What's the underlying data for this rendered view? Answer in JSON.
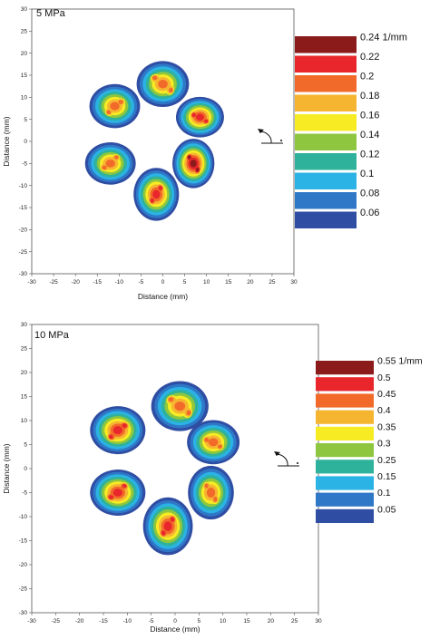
{
  "chart_data": [
    {
      "type": "heatmap",
      "title": "5 MPa",
      "xlabel": "Distance (mm)",
      "ylabel": "Distance (mm)",
      "xlim": [
        -30,
        30
      ],
      "ylim": [
        -30,
        30
      ],
      "xticks": [
        -30,
        -25,
        -20,
        -15,
        -10,
        -5,
        0,
        5,
        10,
        15,
        20,
        25,
        30
      ],
      "yticks": [
        -30,
        -25,
        -20,
        -15,
        -10,
        -5,
        0,
        5,
        10,
        15,
        20,
        25,
        30
      ],
      "grid": false,
      "colorbar": {
        "unit": "1/mm",
        "levels": [
          0.24,
          0.22,
          0.2,
          0.18,
          0.16,
          0.14,
          0.12,
          0.1,
          0.08,
          0.06
        ],
        "labels": [
          "0.24 1/mm",
          "0.22",
          "0.2",
          "0.18",
          "0.16",
          "0.14",
          "0.12",
          "0.1",
          "0.08",
          "0.06"
        ],
        "colors": [
          "#8b1a1a",
          "#e8262b",
          "#f26a2a",
          "#f6b531",
          "#f7ec24",
          "#8ec63f",
          "#2fb29b",
          "#2bb3e5",
          "#2f78c8",
          "#2f4ea3"
        ]
      },
      "blobs": [
        {
          "x": 0,
          "y": 13,
          "peak": 0.2
        },
        {
          "x": -11,
          "y": 8,
          "peak": 0.2
        },
        {
          "x": 8.5,
          "y": 5.5,
          "peak": 0.22
        },
        {
          "x": -12,
          "y": -5,
          "peak": 0.2
        },
        {
          "x": 7,
          "y": -5,
          "peak": 0.24
        },
        {
          "x": -1.5,
          "y": -12,
          "peak": 0.22
        }
      ]
    },
    {
      "type": "heatmap",
      "title": "10 MPa",
      "xlabel": "Distance (mm)",
      "ylabel": "Distance (mm)",
      "xlim": [
        -30,
        30
      ],
      "ylim": [
        -30,
        30
      ],
      "xticks": [
        -30,
        -25,
        -20,
        -15,
        -10,
        -5,
        0,
        5,
        10,
        15,
        20,
        25,
        30
      ],
      "yticks": [
        -30,
        -25,
        -20,
        -15,
        -10,
        -5,
        0,
        5,
        10,
        15,
        20,
        25,
        30
      ],
      "grid": false,
      "colorbar": {
        "unit": "1/mm",
        "levels": [
          0.55,
          0.5,
          0.45,
          0.4,
          0.35,
          0.3,
          0.25,
          0.15,
          0.1,
          0.05
        ],
        "labels": [
          "0.55 1/mm",
          "0.5",
          "0.45",
          "0.4",
          "0.35",
          "0.3",
          "0.25",
          "0.15",
          "0.1",
          "0.05"
        ],
        "colors": [
          "#8b1a1a",
          "#e8262b",
          "#f26a2a",
          "#f6b531",
          "#f7ec24",
          "#8ec63f",
          "#2fb29b",
          "#2bb3e5",
          "#2f78c8",
          "#2f4ea3"
        ]
      },
      "blobs": [
        {
          "x": 1,
          "y": 13,
          "peak": 0.45
        },
        {
          "x": -12,
          "y": 8,
          "peak": 0.5
        },
        {
          "x": 8,
          "y": 5.5,
          "peak": 0.45
        },
        {
          "x": -12,
          "y": -5,
          "peak": 0.5
        },
        {
          "x": 7.5,
          "y": -5,
          "peak": 0.45
        },
        {
          "x": -1.5,
          "y": -12,
          "peak": 0.5
        }
      ]
    }
  ]
}
